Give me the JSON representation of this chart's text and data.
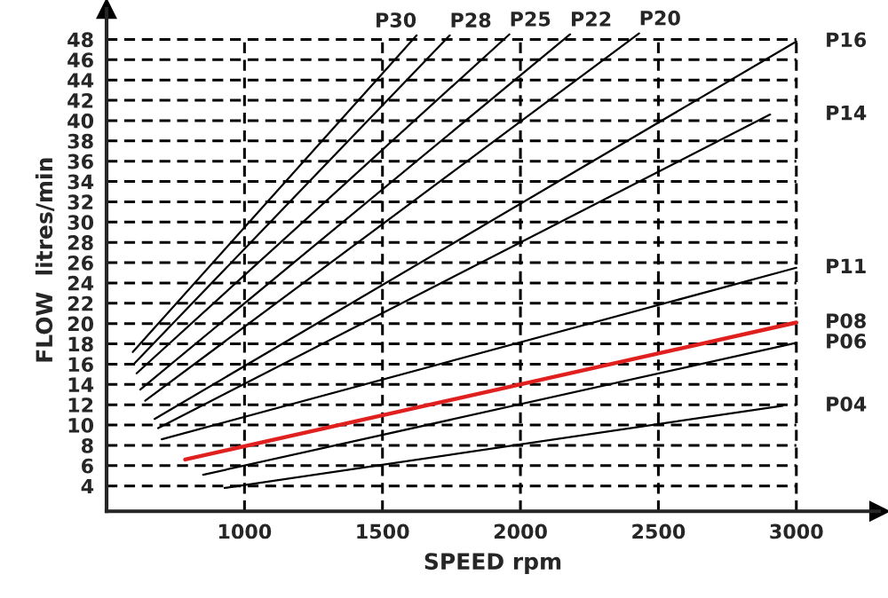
{
  "chart_data": {
    "type": "line",
    "xlabel": "SPEED rpm",
    "ylabel": "FLOW  litres/min",
    "xlim": [
      500,
      3300
    ],
    "ylim": [
      1.5,
      51
    ],
    "xticks": [
      1000,
      1500,
      2000,
      2500,
      3000
    ],
    "yticks": [
      4,
      6,
      8,
      10,
      12,
      14,
      16,
      18,
      20,
      22,
      24,
      26,
      28,
      30,
      32,
      34,
      36,
      38,
      40,
      42,
      44,
      46,
      48
    ],
    "grid": true,
    "marker": "none",
    "line_style": "solid",
    "series": [
      {
        "name": "P30",
        "color": "#000000",
        "x": [
          595,
          1624
        ],
        "values": [
          17.2,
          48.4
        ]
      },
      {
        "name": "P28",
        "color": "#000000",
        "x": [
          602,
          1744
        ],
        "values": [
          16.1,
          48.4
        ]
      },
      {
        "name": "P25",
        "color": "#000000",
        "x": [
          609,
          1960
        ],
        "values": [
          15.1,
          48.5
        ]
      },
      {
        "name": "P22",
        "color": "#000000",
        "x": [
          622,
          2180
        ],
        "values": [
          13.5,
          48.5
        ]
      },
      {
        "name": "P20",
        "color": "#000000",
        "x": [
          640,
          2430
        ],
        "values": [
          12.4,
          48.6
        ]
      },
      {
        "name": "P16",
        "color": "#000000",
        "x": [
          674,
          3000
        ],
        "values": [
          10.6,
          47.8
        ]
      },
      {
        "name": "P14",
        "color": "#000000",
        "x": [
          687,
          2905
        ],
        "values": [
          9.7,
          40.6
        ]
      },
      {
        "name": "P11",
        "color": "#000000",
        "x": [
          700,
          3000
        ],
        "values": [
          8.6,
          25.5
        ]
      },
      {
        "name": "P08",
        "color": "#e0201f",
        "x": [
          785,
          3000
        ],
        "values": [
          6.6,
          20.1
        ]
      },
      {
        "name": "P06",
        "color": "#000000",
        "x": [
          850,
          3000
        ],
        "values": [
          5.1,
          18.1
        ]
      },
      {
        "name": "P04",
        "color": "#000000",
        "x": [
          928,
          2950
        ],
        "values": [
          3.8,
          11.9
        ]
      }
    ]
  }
}
